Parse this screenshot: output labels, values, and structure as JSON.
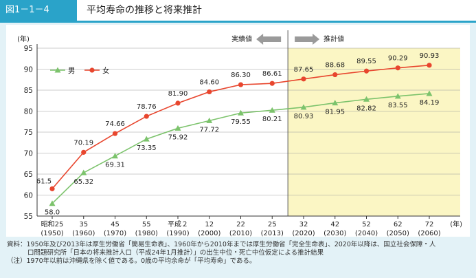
{
  "header": {
    "figure_number": "図1－1－4",
    "title": "平均寿命の推移と将来推計"
  },
  "colors": {
    "accent": "#2aa3c9",
    "male": "#7cc36c",
    "female": "#e8462e",
    "projection_bg": "#fbf6c4"
  },
  "chart_data": {
    "type": "line",
    "ylabel_unit": "(年)",
    "x_unit": "(年)",
    "ylim": [
      55,
      95
    ],
    "yticks": [
      55,
      60,
      65,
      70,
      75,
      80,
      85,
      90,
      95
    ],
    "categories": [
      {
        "era": "昭和25",
        "year": "(1950)"
      },
      {
        "era": "35",
        "year": "(1960)"
      },
      {
        "era": "45",
        "year": "(1970)"
      },
      {
        "era": "55",
        "year": "(1980)"
      },
      {
        "era": "平成２",
        "year": "(1990)"
      },
      {
        "era": "12",
        "year": "(2000)"
      },
      {
        "era": "22",
        "year": "(2010)"
      },
      {
        "era": "25",
        "year": "(2013)"
      },
      {
        "era": "32",
        "year": "(2020)"
      },
      {
        "era": "42",
        "year": "(2030)"
      },
      {
        "era": "52",
        "year": "(2040)"
      },
      {
        "era": "62",
        "year": "(2050)"
      },
      {
        "era": "72",
        "year": "(2060)"
      }
    ],
    "series": [
      {
        "name": "男",
        "values": [
          58.0,
          65.32,
          69.31,
          73.35,
          75.92,
          77.72,
          79.55,
          80.21,
          80.93,
          81.95,
          82.82,
          83.55,
          84.19
        ],
        "labels": [
          "58.0",
          "65.32",
          "69.31",
          "73.35",
          "75.92",
          "77.72",
          "79.55",
          "80.21",
          "80.93",
          "81.95",
          "82.82",
          "83.55",
          "84.19"
        ]
      },
      {
        "name": "女",
        "values": [
          61.5,
          70.19,
          74.66,
          78.76,
          81.9,
          84.6,
          86.3,
          86.61,
          87.65,
          88.68,
          89.55,
          90.29,
          90.93
        ],
        "labels": [
          "61.5",
          "70.19",
          "74.66",
          "78.76",
          "81.90",
          "84.60",
          "86.30",
          "86.61",
          "87.65",
          "88.68",
          "89.55",
          "90.29",
          "90.93"
        ]
      }
    ],
    "projection_start_index": 8,
    "annotations": {
      "actual": "実績値",
      "projected": "推計値"
    }
  },
  "notes": {
    "source_line1": "資料：1950年及び2013年は厚生労働省「簡易生命表」、1960年から2010年までは厚生労働省「完全生命表」、2020年以降は、国立社会保障・人",
    "source_line2": "口問題研究所「日本の将来推計人口（平成24年1月推計）」の出生中位・死亡中位仮定による推計結果",
    "note_line": "（注）1970年以前は沖縄県を除く値である。0歳の平均余命が「平均寿命」である。"
  }
}
